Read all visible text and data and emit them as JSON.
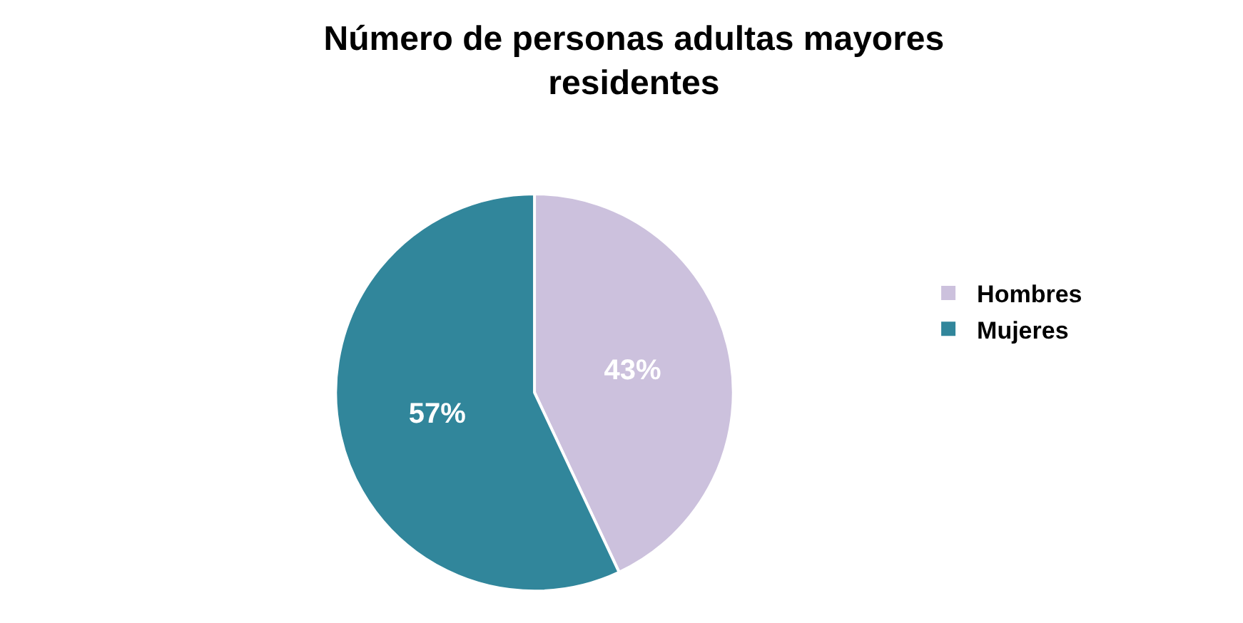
{
  "chart_data": {
    "type": "pie",
    "title": "Número de personas adultas mayores residentes",
    "categories": [
      "Hombres",
      "Mujeres"
    ],
    "values": [
      43,
      57
    ],
    "colors": [
      "#ccc1dd",
      "#31869b"
    ],
    "value_labels": [
      "43%",
      "57%"
    ],
    "legend": "right"
  }
}
